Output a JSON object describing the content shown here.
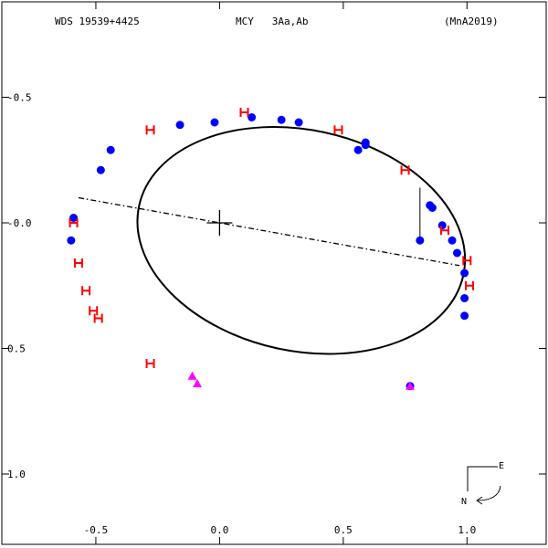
{
  "header": {
    "left": "WDS 19539+4425",
    "center": "MCY   3Aa,Ab",
    "right": "(MnA2019)"
  },
  "compass": {
    "east": "E",
    "north": "N"
  },
  "chart_data": {
    "type": "scatter",
    "title": "",
    "xlabel": "",
    "ylabel": "",
    "xlim": [
      -0.88,
      1.32
    ],
    "ylim": [
      1.28,
      -0.88
    ],
    "x_ticks": [
      -0.5,
      0.0,
      0.5,
      1.0
    ],
    "x_tick_labels": [
      "-0.5",
      "0.0",
      "0.5",
      "1.0"
    ],
    "y_ticks": [
      -0.5,
      0.0,
      0.5,
      1.0
    ],
    "y_tick_labels": [
      "-0.5",
      "-0.0",
      "0.5",
      "1.0"
    ],
    "grid": false,
    "colors": {
      "orbit": "#000000",
      "micrometric": "#0000ff",
      "speckle": "#ff0000",
      "other": "#ff00ff"
    },
    "orbit_ellipse": {
      "cx": 0.33,
      "cy": 0.07,
      "rx": 0.67,
      "ry": 0.44,
      "rotation_deg": 12
    },
    "line_of_nodes": [
      [
        -0.57,
        -0.1
      ],
      [
        0.97,
        0.17
      ]
    ],
    "primary_marker": [
      0.0,
      0.0
    ],
    "series": [
      {
        "marker": "circle",
        "color": "#0000ff",
        "points": [
          [
            -0.59,
            -0.02
          ],
          [
            -0.6,
            0.07
          ],
          [
            -0.48,
            -0.21
          ],
          [
            -0.44,
            -0.29
          ],
          [
            -0.16,
            -0.39
          ],
          [
            -0.02,
            -0.4
          ],
          [
            0.13,
            -0.42
          ],
          [
            0.25,
            -0.41
          ],
          [
            0.32,
            -0.4
          ],
          [
            0.56,
            -0.29
          ],
          [
            0.59,
            -0.31
          ],
          [
            0.59,
            -0.32
          ],
          [
            0.85,
            -0.07
          ],
          [
            0.86,
            -0.06
          ],
          [
            0.81,
            0.07
          ],
          [
            0.9,
            0.01
          ],
          [
            0.94,
            0.07
          ],
          [
            0.96,
            0.12
          ],
          [
            0.99,
            0.2
          ],
          [
            0.99,
            0.3
          ],
          [
            0.99,
            0.37
          ],
          [
            0.77,
            0.65
          ]
        ]
      },
      {
        "marker": "H",
        "color": "#ff0000",
        "points": [
          [
            0.1,
            -0.44
          ],
          [
            -0.28,
            -0.37
          ],
          [
            0.48,
            -0.37
          ],
          [
            0.75,
            -0.21
          ],
          [
            0.91,
            0.03
          ],
          [
            1.0,
            0.15
          ],
          [
            1.01,
            0.25
          ],
          [
            -0.59,
            0.0
          ],
          [
            -0.57,
            0.16
          ],
          [
            -0.54,
            0.27
          ],
          [
            -0.51,
            0.35
          ],
          [
            -0.49,
            0.38
          ],
          [
            -0.28,
            0.56
          ]
        ]
      },
      {
        "marker": "triangle",
        "color": "#ff00ff",
        "points": [
          [
            -0.11,
            0.61
          ],
          [
            -0.09,
            0.64
          ],
          [
            0.77,
            0.65
          ]
        ]
      }
    ]
  }
}
